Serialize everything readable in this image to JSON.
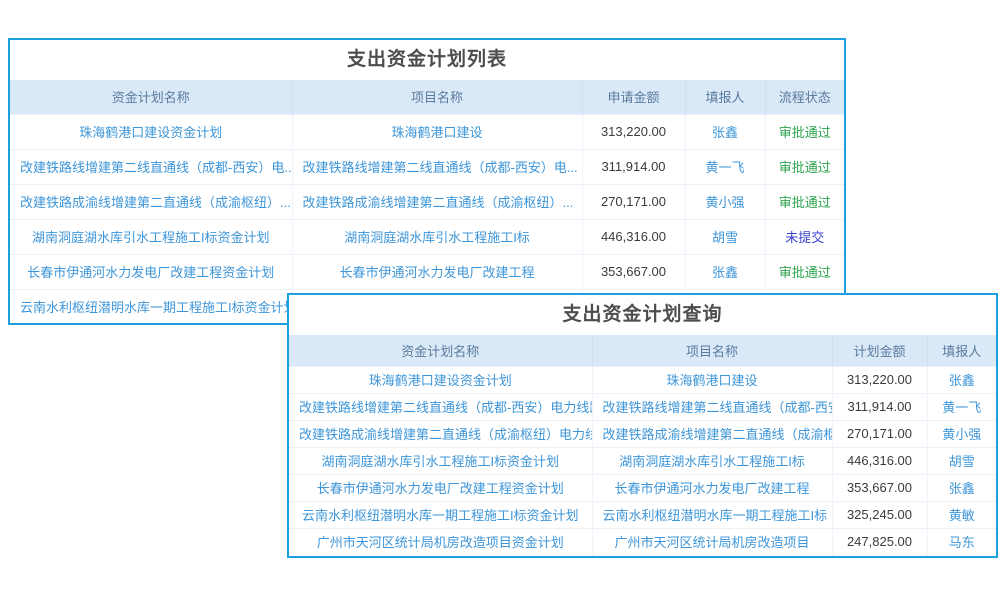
{
  "colors": {
    "window_border": "#1b9fe0",
    "header_bg": "#d9e9f8",
    "header_text": "#5b7b9d",
    "link_blue": "#3e96d9",
    "amount_text": "#3b3b3b",
    "status_approved_green": "#2da44e",
    "status_unsubmitted_blue": "#3a3fd0",
    "title_text": "#4d4d4d"
  },
  "list_window": {
    "title": "支出资金计划列表",
    "columns": [
      "资金计划名称",
      "项目名称",
      "申请金额",
      "填报人",
      "流程状态"
    ],
    "rows": [
      {
        "plan": "珠海鹤港口建设资金计划",
        "project": "珠海鹤港口建设",
        "amount": "313,220.00",
        "reporter": "张鑫",
        "status": "审批通过",
        "status_type": "approved"
      },
      {
        "plan": "改建铁路线增建第二线直通线（成都-西安）电...",
        "project": "改建铁路线增建第二线直通线（成都-西安）电...",
        "amount": "311,914.00",
        "reporter": "黄一飞",
        "status": "审批通过",
        "status_type": "approved"
      },
      {
        "plan": "改建铁路成渝线增建第二直通线（成渝枢纽）...",
        "project": "改建铁路成渝线增建第二直通线（成渝枢纽）...",
        "amount": "270,171.00",
        "reporter": "黄小强",
        "status": "审批通过",
        "status_type": "approved"
      },
      {
        "plan": "湖南洞庭湖水库引水工程施工I标资金计划",
        "project": "湖南洞庭湖水库引水工程施工I标",
        "amount": "446,316.00",
        "reporter": "胡雪",
        "status": "未提交",
        "status_type": "unsubmitted"
      },
      {
        "plan": "长春市伊通河水力发电厂改建工程资金计划",
        "project": "长春市伊通河水力发电厂改建工程",
        "amount": "353,667.00",
        "reporter": "张鑫",
        "status": "审批通过",
        "status_type": "approved"
      },
      {
        "plan": "云南水利枢纽潜明水库一期工程施工I标资金计划",
        "project": "",
        "amount": "",
        "reporter": "",
        "status": "",
        "status_type": ""
      }
    ]
  },
  "query_window": {
    "title": "支出资金计划查询",
    "columns": [
      "资金计划名称",
      "项目名称",
      "计划金额",
      "填报人"
    ],
    "rows": [
      {
        "plan": "珠海鹤港口建设资金计划",
        "project": "珠海鹤港口建设",
        "amount": "313,220.00",
        "reporter": "张鑫"
      },
      {
        "plan": "改建铁路线增建第二线直通线（成都-西安）电力线路迁",
        "project": "改建铁路线增建第二线直通线（成都-西安",
        "amount": "311,914.00",
        "reporter": "黄一飞"
      },
      {
        "plan": "改建铁路成渝线增建第二直通线（成渝枢纽）电力线路迁",
        "project": "改建铁路成渝线增建第二直通线（成渝枢",
        "amount": "270,171.00",
        "reporter": "黄小强"
      },
      {
        "plan": "湖南洞庭湖水库引水工程施工I标资金计划",
        "project": "湖南洞庭湖水库引水工程施工I标",
        "amount": "446,316.00",
        "reporter": "胡雪"
      },
      {
        "plan": "长春市伊通河水力发电厂改建工程资金计划",
        "project": "长春市伊通河水力发电厂改建工程",
        "amount": "353,667.00",
        "reporter": "张鑫"
      },
      {
        "plan": "云南水利枢纽潜明水库一期工程施工I标资金计划",
        "project": "云南水利枢纽潜明水库一期工程施工I标",
        "amount": "325,245.00",
        "reporter": "黄敏"
      },
      {
        "plan": "广州市天河区统计局机房改造项目资金计划",
        "project": "广州市天河区统计局机房改造项目",
        "amount": "247,825.00",
        "reporter": "马东"
      }
    ]
  }
}
